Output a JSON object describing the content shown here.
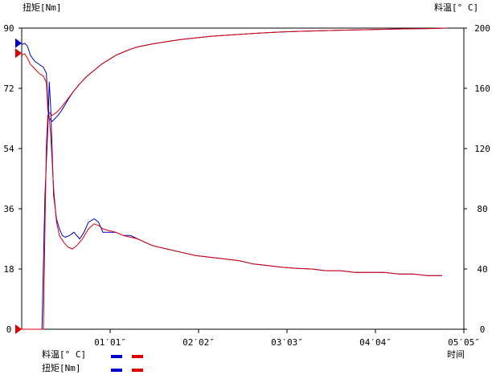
{
  "chart_data": {
    "type": "line",
    "left_axis": {
      "label": "扭矩[Nm]",
      "ticks": [
        0,
        18,
        36,
        54,
        72,
        90
      ],
      "range": [
        0,
        90
      ]
    },
    "right_axis": {
      "label": "料温[°C]",
      "label_text": "料温[° C]",
      "ticks": [
        0,
        40,
        80,
        120,
        160,
        200
      ],
      "range": [
        0,
        200
      ]
    },
    "x_axis": {
      "label": "时间",
      "unit": "seconds",
      "range": [
        0,
        305
      ],
      "ticks": [
        {
          "value": 61,
          "label": "01′01″"
        },
        {
          "value": 122,
          "label": "02′02″"
        },
        {
          "value": 183,
          "label": "03′03″"
        },
        {
          "value": 244,
          "label": "04′04″"
        },
        {
          "value": 305,
          "label": "05′05″"
        }
      ]
    },
    "grid": false,
    "legend": {
      "position": "bottom-left",
      "entries": [
        {
          "label": "料温[° C]",
          "colors": [
            "#0000cc",
            "#dd0000"
          ]
        },
        {
          "label": "扭矩[Nm]",
          "colors": [
            "#0000cc",
            "#dd0000"
          ]
        }
      ]
    },
    "markers": [
      {
        "axis": "left",
        "value": 85.5,
        "color": "#0000cc"
      },
      {
        "axis": "left",
        "value": 82.5,
        "color": "#dd0000"
      },
      {
        "axis": "left",
        "value": 0,
        "color": "#dd0000"
      }
    ],
    "series": [
      {
        "name": "料温[° C]",
        "color": "#0000cc",
        "axis": "right",
        "points": [
          [
            0,
            189
          ],
          [
            2,
            190
          ],
          [
            4,
            188
          ],
          [
            6,
            182
          ],
          [
            9,
            178
          ],
          [
            12,
            176
          ],
          [
            15,
            174
          ],
          [
            17,
            170
          ],
          [
            18,
            150
          ],
          [
            19,
            140
          ],
          [
            21,
            138
          ],
          [
            23,
            140
          ],
          [
            25,
            142
          ],
          [
            28,
            146
          ],
          [
            31,
            151
          ],
          [
            35,
            157
          ],
          [
            40,
            163
          ],
          [
            45,
            168
          ],
          [
            50,
            172
          ],
          [
            55,
            176
          ],
          [
            60,
            179
          ],
          [
            65,
            182
          ],
          [
            70,
            184
          ],
          [
            75,
            186
          ],
          [
            80,
            187.5
          ],
          [
            90,
            189.5
          ],
          [
            100,
            191
          ],
          [
            110,
            192.5
          ],
          [
            120,
            193.5
          ],
          [
            130,
            194.5
          ],
          [
            140,
            195.2
          ],
          [
            150,
            195.8
          ],
          [
            160,
            196.5
          ],
          [
            170,
            197
          ],
          [
            180,
            197.5
          ],
          [
            190,
            197.8
          ],
          [
            200,
            198.1
          ],
          [
            220,
            198.6
          ],
          [
            240,
            199
          ],
          [
            260,
            199.4
          ],
          [
            280,
            199.7
          ],
          [
            293,
            200
          ]
        ]
      },
      {
        "name": "料温[° C]",
        "color": "#dd0000",
        "axis": "right",
        "points": [
          [
            0,
            182
          ],
          [
            2,
            183
          ],
          [
            4,
            180
          ],
          [
            6,
            176
          ],
          [
            9,
            173
          ],
          [
            12,
            170
          ],
          [
            15,
            168
          ],
          [
            17,
            164
          ],
          [
            18,
            145
          ],
          [
            19,
            144
          ],
          [
            21,
            142
          ],
          [
            24,
            144
          ],
          [
            27,
            147
          ],
          [
            31,
            152
          ],
          [
            35,
            157
          ],
          [
            40,
            163
          ],
          [
            45,
            168
          ],
          [
            50,
            172
          ],
          [
            55,
            176
          ],
          [
            60,
            179
          ],
          [
            65,
            182
          ],
          [
            70,
            184
          ],
          [
            75,
            186
          ],
          [
            80,
            187.5
          ],
          [
            90,
            189.5
          ],
          [
            100,
            191
          ],
          [
            110,
            192.5
          ],
          [
            120,
            193.5
          ],
          [
            130,
            194.5
          ],
          [
            140,
            195.2
          ],
          [
            150,
            195.8
          ],
          [
            160,
            196.5
          ],
          [
            170,
            197
          ],
          [
            180,
            197.5
          ],
          [
            190,
            197.8
          ],
          [
            200,
            198.1
          ],
          [
            220,
            198.6
          ],
          [
            240,
            199
          ],
          [
            260,
            199.4
          ],
          [
            280,
            199.7
          ],
          [
            293,
            200
          ]
        ]
      },
      {
        "name": "扭矩[Nm]",
        "color": "#0000cc",
        "axis": "left",
        "points": [
          [
            0,
            0
          ],
          [
            14,
            0
          ],
          [
            16,
            40
          ],
          [
            18,
            60
          ],
          [
            19,
            74
          ],
          [
            20,
            66
          ],
          [
            22,
            40
          ],
          [
            24,
            33
          ],
          [
            26,
            30
          ],
          [
            28,
            28
          ],
          [
            30,
            27.5
          ],
          [
            33,
            28
          ],
          [
            36,
            29
          ],
          [
            40,
            27
          ],
          [
            43,
            29
          ],
          [
            46,
            32
          ],
          [
            50,
            33
          ],
          [
            53,
            32
          ],
          [
            56,
            29
          ],
          [
            60,
            29
          ],
          [
            65,
            29
          ],
          [
            70,
            28
          ],
          [
            75,
            28
          ],
          [
            80,
            27
          ],
          [
            90,
            25
          ],
          [
            100,
            24
          ],
          [
            110,
            23
          ],
          [
            120,
            22
          ],
          [
            130,
            21.5
          ],
          [
            140,
            21
          ],
          [
            150,
            20.5
          ],
          [
            160,
            19.5
          ],
          [
            170,
            19
          ],
          [
            180,
            18.5
          ],
          [
            190,
            18.2
          ],
          [
            200,
            18
          ],
          [
            210,
            17.5
          ],
          [
            220,
            17.5
          ],
          [
            230,
            17
          ],
          [
            240,
            17
          ],
          [
            250,
            17
          ],
          [
            260,
            16.5
          ],
          [
            270,
            16.5
          ],
          [
            280,
            16
          ],
          [
            290,
            16
          ]
        ]
      },
      {
        "name": "扭矩[Nm]",
        "color": "#dd0000",
        "axis": "left",
        "points": [
          [
            0,
            0
          ],
          [
            15,
            0
          ],
          [
            16,
            30
          ],
          [
            17,
            55
          ],
          [
            18,
            64
          ],
          [
            19,
            63
          ],
          [
            20,
            58
          ],
          [
            22,
            42
          ],
          [
            24,
            32
          ],
          [
            26,
            28
          ],
          [
            29,
            26
          ],
          [
            32,
            24.5
          ],
          [
            35,
            24
          ],
          [
            38,
            25
          ],
          [
            42,
            27
          ],
          [
            46,
            30
          ],
          [
            50,
            31.5
          ],
          [
            53,
            31
          ],
          [
            56,
            30
          ],
          [
            60,
            29.5
          ],
          [
            65,
            29
          ],
          [
            70,
            28
          ],
          [
            75,
            27.5
          ],
          [
            80,
            27
          ],
          [
            90,
            25
          ],
          [
            100,
            24
          ],
          [
            110,
            23
          ],
          [
            120,
            22
          ],
          [
            130,
            21.5
          ],
          [
            140,
            21
          ],
          [
            150,
            20.5
          ],
          [
            160,
            19.5
          ],
          [
            170,
            19
          ],
          [
            180,
            18.5
          ],
          [
            190,
            18.2
          ],
          [
            200,
            18
          ],
          [
            210,
            17.5
          ],
          [
            220,
            17.5
          ],
          [
            230,
            17
          ],
          [
            240,
            17
          ],
          [
            250,
            17
          ],
          [
            260,
            16.5
          ],
          [
            270,
            16.5
          ],
          [
            280,
            16
          ],
          [
            290,
            16
          ]
        ]
      }
    ]
  }
}
